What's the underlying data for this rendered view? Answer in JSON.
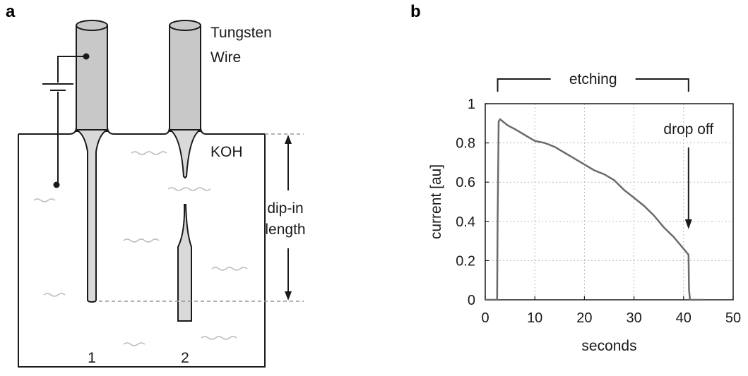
{
  "panels": {
    "a": "a",
    "b": "b"
  },
  "diagram": {
    "wire_label_line1": "Tungsten",
    "wire_label_line2": "Wire",
    "solution_label": "KOH",
    "dip_label_line1": "dip-in",
    "dip_label_line2": "length",
    "wire1_number": "1",
    "wire2_number": "2"
  },
  "colors": {
    "wire_fill": "#c8c8c8",
    "outline": "#1a1a1a",
    "ripple": "#bdbdbd",
    "dashed": "#999999",
    "curve": "#6b6b6b",
    "grid": "#bbbbbb"
  },
  "chart_data": {
    "type": "line",
    "xlabel": "seconds",
    "ylabel": "current [au]",
    "xlim": [
      0,
      50
    ],
    "ylim": [
      0,
      1
    ],
    "xticks": [
      "0",
      "10",
      "20",
      "30",
      "40",
      "50"
    ],
    "yticks": [
      "0",
      "0.2",
      "0.4",
      "0.6",
      "0.8",
      "1"
    ],
    "grid": true,
    "annotations": {
      "bracket_label": "etching",
      "bracket_range": [
        2.5,
        41
      ],
      "drop_label": "drop off",
      "drop_x": 41
    },
    "series": [
      {
        "x": [
          0,
          2.4,
          2.5,
          2.7,
          3.0,
          3.5,
          4.5,
          6,
          8,
          10,
          12,
          14,
          16,
          18,
          20,
          22,
          24,
          26,
          28,
          30,
          32,
          34,
          36,
          38,
          40,
          41.0,
          41.1,
          41.3,
          44
        ],
        "values": [
          0,
          0,
          0.4,
          0.91,
          0.92,
          0.91,
          0.89,
          0.87,
          0.84,
          0.81,
          0.8,
          0.78,
          0.75,
          0.72,
          0.69,
          0.66,
          0.64,
          0.61,
          0.56,
          0.52,
          0.48,
          0.43,
          0.37,
          0.32,
          0.26,
          0.23,
          0.05,
          0,
          0
        ]
      }
    ]
  }
}
